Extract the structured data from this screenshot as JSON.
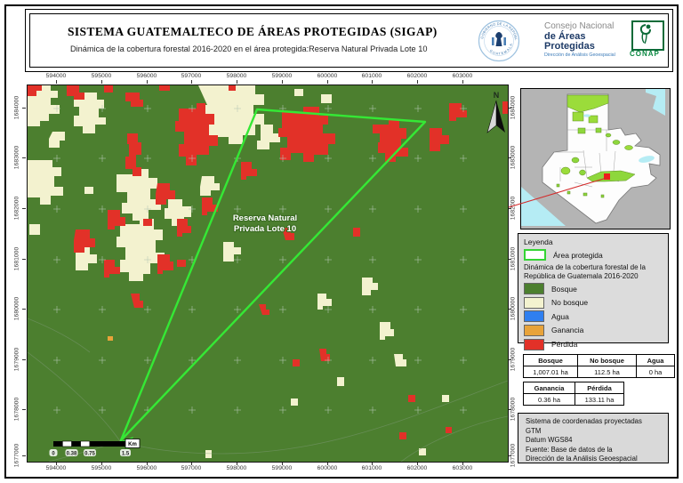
{
  "header": {
    "title": "SISTEMA GUATEMALTECO DE ÁREAS PROTEGIDAS  (SIGAP)",
    "subtitle": "Dinámica de la cobertura forestal 2016-2020 en el área protegida:Reserva Natural Privada Lote 10",
    "seal_top": "GOBIERNO DE LA REPÚBLICA",
    "seal_bottom": "GUATEMALA",
    "org_line1": "Consejo Nacional",
    "org_line2": "de Áreas Protegidas",
    "org_line3": "Dirección de Análisis Geoespacial",
    "conap": "CONAP"
  },
  "map": {
    "x_ticks": [
      "594000",
      "595000",
      "596000",
      "597000",
      "598000",
      "599000",
      "600000",
      "601000",
      "602000",
      "603000"
    ],
    "y_ticks": [
      "1684000",
      "1683000",
      "1682000",
      "1681000",
      "1680000",
      "1679000",
      "1678000",
      "1677000"
    ],
    "area_label_line1": "Reserva Natural",
    "area_label_line2": "Privada Lote 10",
    "north_label": "N",
    "scalebar": {
      "labels": [
        "0",
        "0.38",
        "0.75",
        "1.5"
      ],
      "unit": "Km"
    }
  },
  "legend": {
    "title": "Leyenda",
    "area_item_label": "Área protegida",
    "area_item_color": "#35d435",
    "subtitle": "Dinámica de la cobertura forestal de la República de Guatemala 2016-2020",
    "items": [
      {
        "label": "Bosque",
        "color": "#4c7f2f"
      },
      {
        "label": "No bosque",
        "color": "#f3f2cf"
      },
      {
        "label": "Agua",
        "color": "#2f7ff0"
      },
      {
        "label": "Ganancia",
        "color": "#e8a33a"
      },
      {
        "label": "Pérdida",
        "color": "#e23128"
      }
    ]
  },
  "tables": {
    "coverage": {
      "headers": [
        "Bosque",
        "No bosque",
        "Agua"
      ],
      "values": [
        "1,007.01 ha",
        "112.5 ha",
        "0 ha"
      ]
    },
    "change": {
      "headers": [
        "Ganancia",
        "Pérdida"
      ],
      "values": [
        "0.36 ha",
        "133.11 ha"
      ]
    }
  },
  "info_box": {
    "lines": [
      "Sistema de coordenadas proyectadas",
      "GTM",
      "Datum WGS84",
      "Fuente: Base de datos de la",
      "Dirección de la Análisis Geoespacial"
    ]
  }
}
